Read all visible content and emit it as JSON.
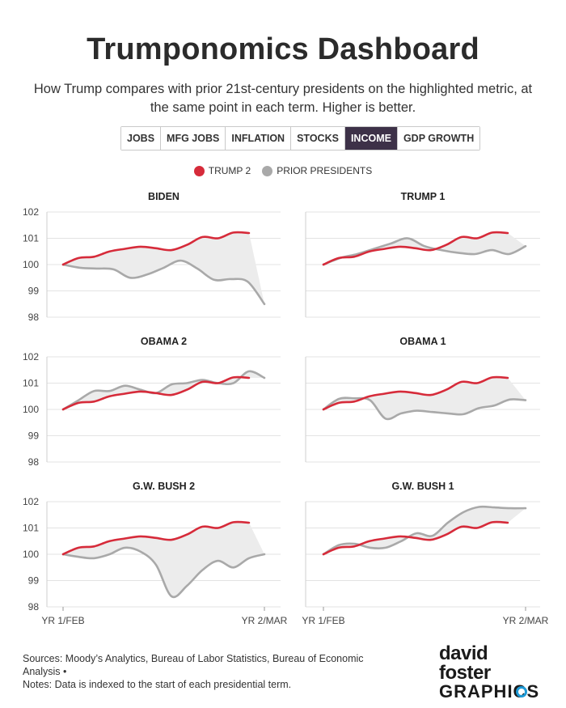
{
  "title": "Trumponomics Dashboard",
  "subtitle": "How Trump compares with prior 21st-century presidents on the highlighted metric, at the same point in each term. Higher is better.",
  "tabs": [
    {
      "label": "JOBS",
      "active": false
    },
    {
      "label": "MFG JOBS",
      "active": false
    },
    {
      "label": "INFLATION",
      "active": false
    },
    {
      "label": "STOCKS",
      "active": false
    },
    {
      "label": "INCOME",
      "active": true
    },
    {
      "label": "GDP GROWTH",
      "active": false
    }
  ],
  "legend": [
    {
      "label": "TRUMP 2",
      "color": "#d62b3a"
    },
    {
      "label": "PRIOR PRESIDENTS",
      "color": "#a9a9a9"
    }
  ],
  "footer": {
    "line1": "Sources: Moody’s Analytics, Bureau of Labor Statistics, Bureau of Economic Analysis •",
    "line2": "Notes: Data is indexed to the start of each presidential term."
  },
  "logo": {
    "line1": "david foster",
    "line2": "GRAPHICS"
  },
  "colors": {
    "trump": "#d62b3a",
    "prior": "#a9a9a9",
    "fill": "#ececec",
    "grid": "#e3e3e3",
    "accent_tab": "#3d3148"
  },
  "chart_data": {
    "type": "line",
    "x_labels": {
      "start": "YR 1/FEB",
      "end": "YR 2/MAR"
    },
    "ylim": [
      98,
      102
    ],
    "yticks": [
      98,
      99,
      100,
      101,
      102
    ],
    "trump2": [
      100.0,
      100.25,
      100.3,
      100.5,
      100.6,
      100.68,
      100.62,
      100.55,
      100.75,
      101.05,
      101.0,
      101.22,
      101.2
    ],
    "panels": [
      {
        "title": "BIDEN",
        "series": [
          {
            "name": "BIDEN",
            "values": [
              100.0,
              99.88,
              99.85,
              99.82,
              99.5,
              99.62,
              99.88,
              100.15,
              99.85,
              99.42,
              99.45,
              99.35,
              98.5
            ]
          }
        ]
      },
      {
        "title": "TRUMP 1",
        "series": [
          {
            "name": "TRUMP 1",
            "values": [
              100.0,
              100.25,
              100.4,
              100.6,
              100.8,
              101.0,
              100.7,
              100.55,
              100.45,
              100.4,
              100.55,
              100.4,
              100.7
            ]
          }
        ]
      },
      {
        "title": "OBAMA 2",
        "series": [
          {
            "name": "OBAMA 2",
            "values": [
              100.0,
              100.35,
              100.7,
              100.7,
              100.9,
              100.75,
              100.62,
              100.95,
              101.0,
              101.12,
              101.0,
              101.0,
              101.45,
              101.2
            ]
          }
        ]
      },
      {
        "title": "OBAMA 1",
        "series": [
          {
            "name": "OBAMA 1",
            "values": [
              100.0,
              100.4,
              100.42,
              100.35,
              99.65,
              99.85,
              99.95,
              99.9,
              99.85,
              99.82,
              100.05,
              100.15,
              100.38,
              100.35
            ]
          }
        ]
      },
      {
        "title": "G.W. BUSH 2",
        "series": [
          {
            "name": "G.W. BUSH 2",
            "values": [
              100.0,
              99.9,
              99.85,
              100.0,
              100.25,
              100.1,
              99.6,
              98.4,
              98.8,
              99.4,
              99.75,
              99.5,
              99.85,
              100.0
            ]
          }
        ]
      },
      {
        "title": "G.W. BUSH 1",
        "series": [
          {
            "name": "G.W. BUSH 1",
            "values": [
              100.0,
              100.35,
              100.4,
              100.25,
              100.25,
              100.5,
              100.8,
              100.7,
              101.2,
              101.6,
              101.8,
              101.78,
              101.75,
              101.75
            ]
          }
        ]
      }
    ]
  }
}
